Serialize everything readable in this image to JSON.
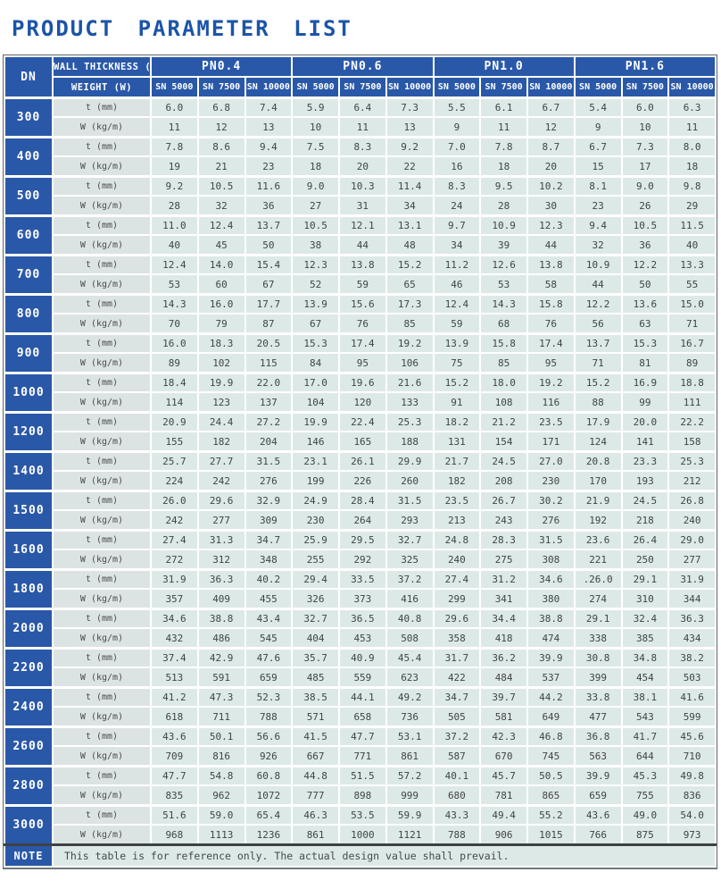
{
  "title": "PRODUCT PARAMETER LIST",
  "colors": {
    "title_blue": "#1c54a8",
    "header_blue": "#2a58a8",
    "cell_bg": "#dde9e7",
    "label_bg": "#dce4e3"
  },
  "table": {
    "dn_header": "DN",
    "row_label_headers": [
      "WALL THICKNESS (t)",
      "WEIGHT (W)"
    ],
    "pn_groups": [
      "PN0.4",
      "PN0.6",
      "PN1.0",
      "PN1.6"
    ],
    "sn_labels": [
      "SN 5000",
      "SN 7500",
      "SN 10000"
    ],
    "t_label": "t (mm)",
    "w_label": "W (kg/m)",
    "rows": [
      {
        "dn": "300",
        "t": [
          "6.0",
          "6.8",
          "7.4",
          "5.9",
          "6.4",
          "7.3",
          "5.5",
          "6.1",
          "6.7",
          "5.4",
          "6.0",
          "6.3"
        ],
        "w": [
          "11",
          "12",
          "13",
          "10",
          "11",
          "13",
          "9",
          "11",
          "12",
          "9",
          "10",
          "11"
        ]
      },
      {
        "dn": "400",
        "t": [
          "7.8",
          "8.6",
          "9.4",
          "7.5",
          "8.3",
          "9.2",
          "7.0",
          "7.8",
          "8.7",
          "6.7",
          "7.3",
          "8.0"
        ],
        "w": [
          "19",
          "21",
          "23",
          "18",
          "20",
          "22",
          "16",
          "18",
          "20",
          "15",
          "17",
          "18"
        ]
      },
      {
        "dn": "500",
        "t": [
          "9.2",
          "10.5",
          "11.6",
          "9.0",
          "10.3",
          "11.4",
          "8.3",
          "9.5",
          "10.2",
          "8.1",
          "9.0",
          "9.8"
        ],
        "w": [
          "28",
          "32",
          "36",
          "27",
          "31",
          "34",
          "24",
          "28",
          "30",
          "23",
          "26",
          "29"
        ]
      },
      {
        "dn": "600",
        "t": [
          "11.0",
          "12.4",
          "13.7",
          "10.5",
          "12.1",
          "13.1",
          "9.7",
          "10.9",
          "12.3",
          "9.4",
          "10.5",
          "11.5"
        ],
        "w": [
          "40",
          "45",
          "50",
          "38",
          "44",
          "48",
          "34",
          "39",
          "44",
          "32",
          "36",
          "40"
        ]
      },
      {
        "dn": "700",
        "t": [
          "12.4",
          "14.0",
          "15.4",
          "12.3",
          "13.8",
          "15.2",
          "11.2",
          "12.6",
          "13.8",
          "10.9",
          "12.2",
          "13.3"
        ],
        "w": [
          "53",
          "60",
          "67",
          "52",
          "59",
          "65",
          "46",
          "53",
          "58",
          "44",
          "50",
          "55"
        ]
      },
      {
        "dn": "800",
        "t": [
          "14.3",
          "16.0",
          "17.7",
          "13.9",
          "15.6",
          "17.3",
          "12.4",
          "14.3",
          "15.8",
          "12.2",
          "13.6",
          "15.0"
        ],
        "w": [
          "70",
          "79",
          "87",
          "67",
          "76",
          "85",
          "59",
          "68",
          "76",
          "56",
          "63",
          "71"
        ]
      },
      {
        "dn": "900",
        "t": [
          "16.0",
          "18.3",
          "20.5",
          "15.3",
          "17.4",
          "19.2",
          "13.9",
          "15.8",
          "17.4",
          "13.7",
          "15.3",
          "16.7"
        ],
        "w": [
          "89",
          "102",
          "115",
          "84",
          "95",
          "106",
          "75",
          "85",
          "95",
          "71",
          "81",
          "89"
        ]
      },
      {
        "dn": "1000",
        "t": [
          "18.4",
          "19.9",
          "22.0",
          "17.0",
          "19.6",
          "21.6",
          "15.2",
          "18.0",
          "19.2",
          "15.2",
          "16.9",
          "18.8"
        ],
        "w": [
          "114",
          "123",
          "137",
          "104",
          "120",
          "133",
          "91",
          "108",
          "116",
          "88",
          "99",
          "111"
        ]
      },
      {
        "dn": "1200",
        "t": [
          "20.9",
          "24.4",
          "27.2",
          "19.9",
          "22.4",
          "25.3",
          "18.2",
          "21.2",
          "23.5",
          "17.9",
          "20.0",
          "22.2"
        ],
        "w": [
          "155",
          "182",
          "204",
          "146",
          "165",
          "188",
          "131",
          "154",
          "171",
          "124",
          "141",
          "158"
        ]
      },
      {
        "dn": "1400",
        "t": [
          "25.7",
          "27.7",
          "31.5",
          "23.1",
          "26.1",
          "29.9",
          "21.7",
          "24.5",
          "27.0",
          "20.8",
          "23.3",
          "25.3"
        ],
        "w": [
          "224",
          "242",
          "276",
          "199",
          "226",
          "260",
          "182",
          "208",
          "230",
          "170",
          "193",
          "212"
        ]
      },
      {
        "dn": "1500",
        "t": [
          "26.0",
          "29.6",
          "32.9",
          "24.9",
          "28.4",
          "31.5",
          "23.5",
          "26.7",
          "30.2",
          "21.9",
          "24.5",
          "26.8"
        ],
        "w": [
          "242",
          "277",
          "309",
          "230",
          "264",
          "293",
          "213",
          "243",
          "276",
          "192",
          "218",
          "240"
        ]
      },
      {
        "dn": "1600",
        "t": [
          "27.4",
          "31.3",
          "34.7",
          "25.9",
          "29.5",
          "32.7",
          "24.8",
          "28.3",
          "31.5",
          "23.6",
          "26.4",
          "29.0"
        ],
        "w": [
          "272",
          "312",
          "348",
          "255",
          "292",
          "325",
          "240",
          "275",
          "308",
          "221",
          "250",
          "277"
        ]
      },
      {
        "dn": "1800",
        "t": [
          "31.9",
          "36.3",
          "40.2",
          "29.4",
          "33.5",
          "37.2",
          "27.4",
          "31.2",
          "34.6",
          ".26.0",
          "29.1",
          "31.9"
        ],
        "w": [
          "357",
          "409",
          "455",
          "326",
          "373",
          "416",
          "299",
          "341",
          "380",
          "274",
          "310",
          "344"
        ]
      },
      {
        "dn": "2000",
        "t": [
          "34.6",
          "38.8",
          "43.4",
          "32.7",
          "36.5",
          "40.8",
          "29.6",
          "34.4",
          "38.8",
          "29.1",
          "32.4",
          "36.3"
        ],
        "w": [
          "432",
          "486",
          "545",
          "404",
          "453",
          "508",
          "358",
          "418",
          "474",
          "338",
          "385",
          "434"
        ]
      },
      {
        "dn": "2200",
        "t": [
          "37.4",
          "42.9",
          "47.6",
          "35.7",
          "40.9",
          "45.4",
          "31.7",
          "36.2",
          "39.9",
          "30.8",
          "34.8",
          "38.2"
        ],
        "w": [
          "513",
          "591",
          "659",
          "485",
          "559",
          "623",
          "422",
          "484",
          "537",
          "399",
          "454",
          "503"
        ]
      },
      {
        "dn": "2400",
        "t": [
          "41.2",
          "47.3",
          "52.3",
          "38.5",
          "44.1",
          "49.2",
          "34.7",
          "39.7",
          "44.2",
          "33.8",
          "38.1",
          "41.6"
        ],
        "w": [
          "618",
          "711",
          "788",
          "571",
          "658",
          "736",
          "505",
          "581",
          "649",
          "477",
          "543",
          "599"
        ]
      },
      {
        "dn": "2600",
        "t": [
          "43.6",
          "50.1",
          "56.6",
          "41.5",
          "47.7",
          "53.1",
          "37.2",
          "42.3",
          "46.8",
          "36.8",
          "41.7",
          "45.6"
        ],
        "w": [
          "709",
          "816",
          "926",
          "667",
          "771",
          "861",
          "587",
          "670",
          "745",
          "563",
          "644",
          "710"
        ]
      },
      {
        "dn": "2800",
        "t": [
          "47.7",
          "54.8",
          "60.8",
          "44.8",
          "51.5",
          "57.2",
          "40.1",
          "45.7",
          "50.5",
          "39.9",
          "45.3",
          "49.8"
        ],
        "w": [
          "835",
          "962",
          "1072",
          "777",
          "898",
          "999",
          "680",
          "781",
          "865",
          "659",
          "755",
          "836"
        ]
      },
      {
        "dn": "3000",
        "t": [
          "51.6",
          "59.0",
          "65.4",
          "46.3",
          "53.5",
          "59.9",
          "43.3",
          "49.4",
          "55.2",
          "43.6",
          "49.0",
          "54.0"
        ],
        "w": [
          "968",
          "1113",
          "1236",
          "861",
          "1000",
          "1121",
          "788",
          "906",
          "1015",
          "766",
          "875",
          "973"
        ]
      }
    ],
    "note_label": "NOTE",
    "note_text": "This table is for reference only. The actual design value shall prevail."
  }
}
